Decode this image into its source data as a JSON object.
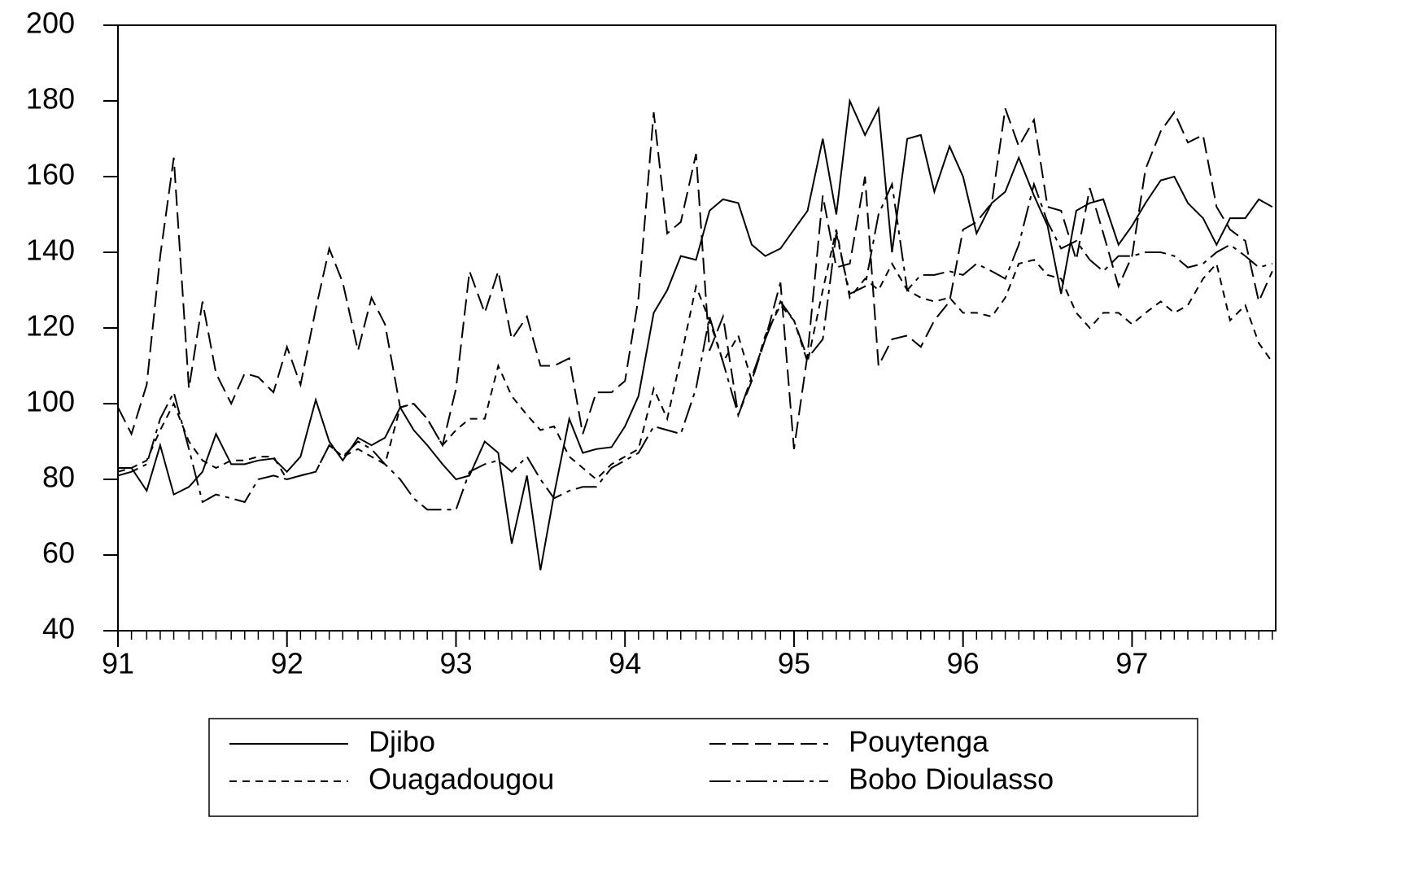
{
  "chart_data": {
    "type": "line",
    "x": [
      91,
      91.08,
      91.17,
      91.25,
      91.33,
      91.42,
      91.5,
      91.58,
      91.67,
      91.75,
      91.83,
      91.92,
      92,
      92.08,
      92.17,
      92.25,
      92.33,
      92.42,
      92.5,
      92.58,
      92.67,
      92.75,
      92.83,
      92.92,
      93,
      93.08,
      93.17,
      93.25,
      93.33,
      93.42,
      93.5,
      93.58,
      93.67,
      93.75,
      93.83,
      93.92,
      94,
      94.08,
      94.17,
      94.25,
      94.33,
      94.42,
      94.5,
      94.58,
      94.67,
      94.75,
      94.83,
      94.92,
      95,
      95.08,
      95.17,
      95.25,
      95.33,
      95.42,
      95.5,
      95.58,
      95.67,
      95.75,
      95.83,
      95.92,
      96,
      96.08,
      96.17,
      96.25,
      96.33,
      96.42,
      96.5,
      96.58,
      96.67,
      96.75,
      96.83,
      96.92,
      97,
      97.08,
      97.17,
      97.25,
      97.33,
      97.42,
      97.5,
      97.58,
      97.67,
      97.75,
      97.83
    ],
    "series": [
      {
        "name": "Djibo",
        "color": "#000000",
        "values": [
          83,
          83,
          77,
          89,
          76,
          78,
          82,
          92,
          84,
          84,
          85,
          85.5,
          82,
          86,
          101,
          90,
          85,
          91,
          89,
          91,
          99,
          93,
          89,
          84,
          80,
          81,
          90,
          87,
          63,
          81,
          56,
          76,
          96,
          87,
          88,
          88.5,
          94,
          102,
          124,
          130,
          139,
          138,
          151,
          154,
          153,
          142,
          139,
          141,
          146,
          151,
          170,
          150,
          180,
          171,
          178,
          140,
          170,
          171,
          156,
          168,
          160,
          145,
          153,
          156,
          165,
          155,
          147,
          129,
          151,
          153,
          154,
          142,
          147,
          153,
          159,
          160,
          153,
          149,
          142,
          149,
          149,
          154,
          152
        ]
      },
      {
        "name": "Pouytenga",
        "color": "#000000",
        "values": [
          99,
          92,
          105,
          139,
          165,
          104,
          127,
          108,
          100,
          108,
          107,
          103,
          115,
          105,
          125,
          141,
          132,
          114,
          128,
          121,
          99,
          100,
          96,
          89,
          104,
          135,
          124,
          135,
          117,
          123,
          110,
          110,
          112,
          92,
          103,
          103,
          106,
          128,
          177,
          145,
          148,
          166,
          114,
          123,
          97,
          106,
          117,
          132,
          88,
          113,
          155,
          136,
          137,
          160,
          110,
          117,
          118,
          115,
          122,
          127,
          146,
          148,
          153,
          178,
          168,
          175,
          152,
          151,
          138,
          157,
          145,
          131,
          139,
          162,
          172,
          177,
          169,
          171,
          152,
          146,
          143,
          127,
          135
        ]
      },
      {
        "name": "Ouagadougou",
        "color": "#000000",
        "values": [
          82,
          83,
          85,
          93,
          100,
          90,
          85,
          83,
          85,
          85,
          86,
          86,
          80,
          81,
          82,
          89,
          86,
          88,
          86,
          84,
          99,
          100,
          96,
          89,
          93,
          96,
          96,
          110,
          102,
          97,
          93,
          94,
          86,
          83,
          80,
          84,
          86,
          88,
          104,
          96,
          112,
          131,
          122,
          111,
          118,
          106,
          118,
          126,
          122,
          111,
          130,
          146,
          128,
          133,
          130,
          137,
          130,
          128,
          127,
          128,
          124,
          124,
          123,
          128,
          137,
          138,
          134,
          133,
          124,
          120,
          124,
          124,
          121,
          124,
          127,
          124,
          126,
          133,
          137,
          122,
          126,
          116,
          111
        ]
      },
      {
        "name": "Bobo Dioulasso",
        "color": "#000000",
        "values": [
          81,
          82,
          84,
          96,
          103,
          88,
          74,
          76,
          75,
          74,
          80,
          81,
          80,
          81,
          82,
          89,
          86,
          90,
          88,
          84,
          80,
          75,
          72,
          72,
          72,
          82,
          84,
          85,
          82,
          86,
          80,
          75,
          77,
          78,
          78,
          83,
          85,
          87,
          94,
          93,
          92,
          104,
          123,
          111,
          97,
          107,
          117,
          127,
          122,
          112,
          117,
          145,
          129,
          131,
          150,
          158,
          130,
          134,
          134,
          135,
          134,
          137,
          135,
          133,
          142,
          158,
          148,
          141,
          143,
          138,
          135,
          139,
          139,
          140,
          140,
          139,
          136,
          137,
          140,
          142,
          139,
          136,
          137
        ]
      }
    ],
    "xlim": [
      91,
      97.85
    ],
    "xticks": [
      91,
      92,
      93,
      94,
      95,
      96,
      97
    ],
    "ylim": [
      40,
      200
    ],
    "yticks": [
      40,
      60,
      80,
      100,
      120,
      140,
      160,
      180,
      200
    ],
    "grid": false
  }
}
